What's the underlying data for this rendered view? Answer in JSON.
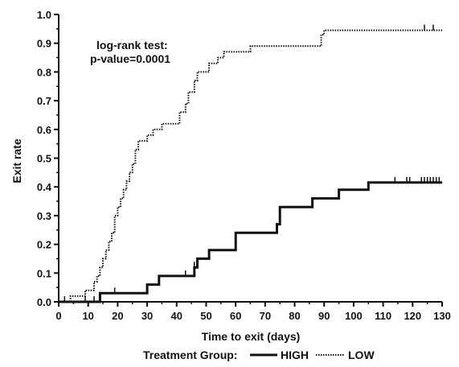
{
  "chart_data": {
    "type": "line",
    "xlabel": "Time to exit (days)",
    "ylabel": "Exit rate",
    "xlim": [
      0,
      130
    ],
    "ylim": [
      0,
      1.0
    ],
    "x_ticks": [
      "0",
      "10",
      "20",
      "30",
      "40",
      "50",
      "60",
      "70",
      "80",
      "90",
      "100",
      "110",
      "120",
      "130"
    ],
    "y_ticks": [
      "0.0",
      "0.1",
      "0.2",
      "0.3",
      "0.4",
      "0.5",
      "0.6",
      "0.7",
      "0.8",
      "0.9",
      "1.0"
    ],
    "annotation": {
      "line1": "log-rank test:",
      "line2": "p-value=0.0001"
    },
    "legend": {
      "title": "Treatment Group:",
      "position": "bottom"
    },
    "series": [
      {
        "name": "HIGH",
        "style": "solid",
        "color": "#111111",
        "steps": [
          [
            0,
            0.0
          ],
          [
            14,
            0.03
          ],
          [
            30,
            0.06
          ],
          [
            34,
            0.09
          ],
          [
            46,
            0.12
          ],
          [
            47,
            0.15
          ],
          [
            51,
            0.18
          ],
          [
            60,
            0.24
          ],
          [
            74,
            0.27
          ],
          [
            75,
            0.33
          ],
          [
            86,
            0.36
          ],
          [
            95,
            0.39
          ],
          [
            105,
            0.415
          ],
          [
            130,
            0.415
          ]
        ],
        "censored": [
          2,
          9,
          12,
          19,
          43,
          46,
          114,
          118,
          119,
          123,
          124,
          125,
          126,
          127,
          128,
          129
        ]
      },
      {
        "name": "LOW",
        "style": "dotted",
        "color": "#111111",
        "steps": [
          [
            0,
            0.0
          ],
          [
            4,
            0.02
          ],
          [
            9,
            0.04
          ],
          [
            12,
            0.07
          ],
          [
            13,
            0.09
          ],
          [
            14,
            0.12
          ],
          [
            15,
            0.15
          ],
          [
            16,
            0.18
          ],
          [
            17,
            0.21
          ],
          [
            18,
            0.24
          ],
          [
            19,
            0.3
          ],
          [
            20,
            0.33
          ],
          [
            21,
            0.36
          ],
          [
            22,
            0.39
          ],
          [
            23,
            0.42
          ],
          [
            24,
            0.45
          ],
          [
            25,
            0.48
          ],
          [
            26,
            0.53
          ],
          [
            27,
            0.56
          ],
          [
            30,
            0.58
          ],
          [
            32,
            0.6
          ],
          [
            35,
            0.62
          ],
          [
            41,
            0.66
          ],
          [
            43,
            0.69
          ],
          [
            44,
            0.73
          ],
          [
            46,
            0.77
          ],
          [
            47,
            0.8
          ],
          [
            51,
            0.83
          ],
          [
            54,
            0.85
          ],
          [
            56,
            0.87
          ],
          [
            65,
            0.89
          ],
          [
            89,
            0.93
          ],
          [
            90,
            0.945
          ],
          [
            130,
            0.945
          ]
        ],
        "censored": [
          124,
          127
        ]
      }
    ]
  }
}
